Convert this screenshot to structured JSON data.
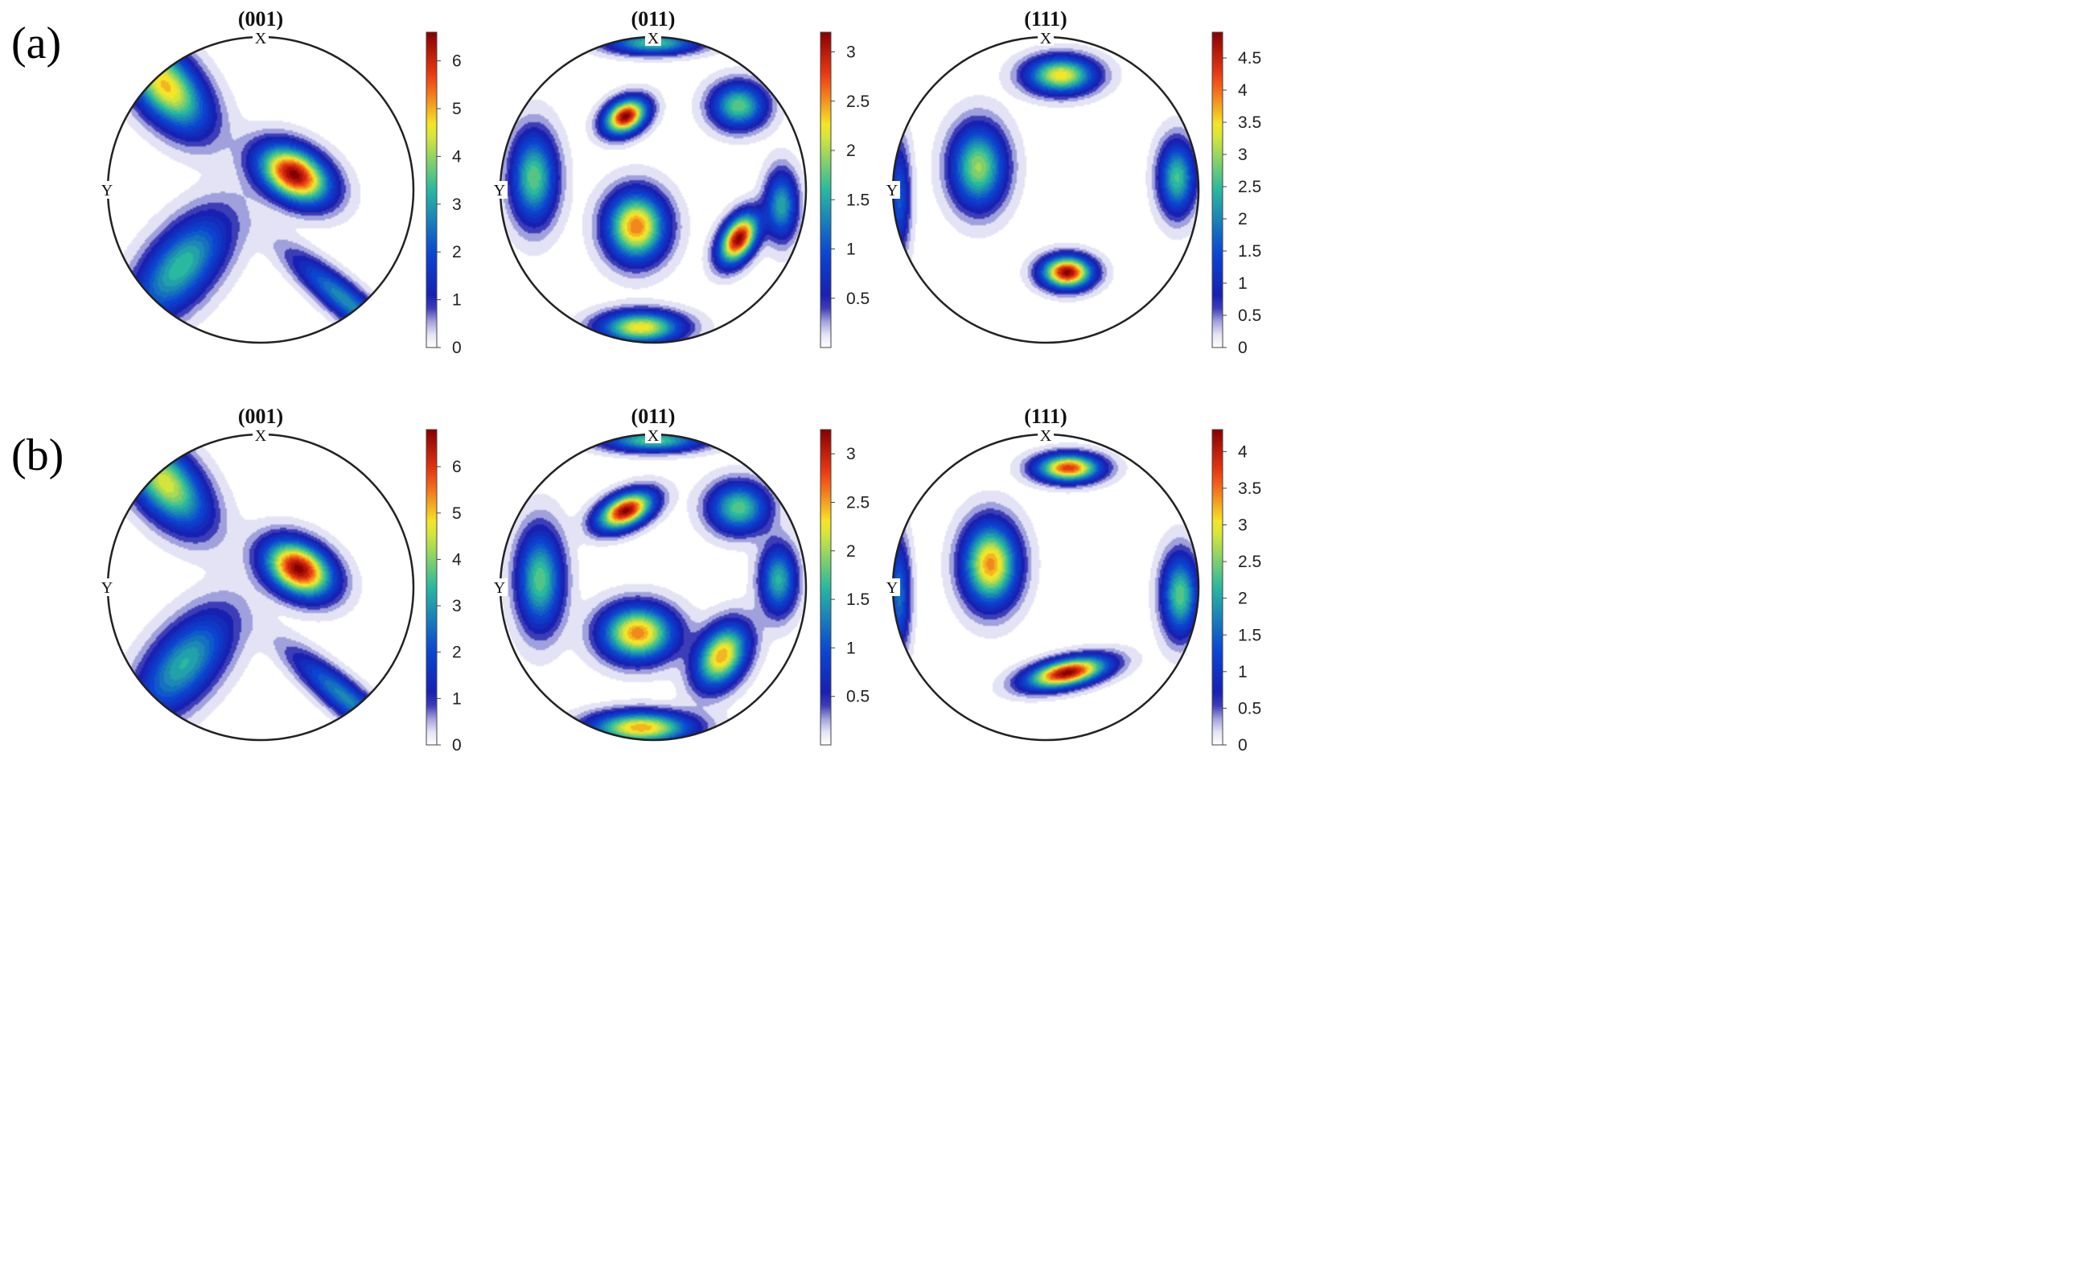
{
  "figure": {
    "rows": [
      {
        "label": "(a)",
        "panels": [
          {
            "title": "(001)",
            "x_axis_label": "X",
            "y_axis_label": "Y"
          },
          {
            "title": "(011)",
            "x_axis_label": "X",
            "y_axis_label": "Y"
          },
          {
            "title": "(111)",
            "x_axis_label": "X",
            "y_axis_label": "Y"
          }
        ]
      },
      {
        "label": "(b)",
        "panels": [
          {
            "title": "(001)",
            "x_axis_label": "X",
            "y_axis_label": "Y"
          },
          {
            "title": "(011)",
            "x_axis_label": "X",
            "y_axis_label": "Y"
          },
          {
            "title": "(111)",
            "x_axis_label": "X",
            "y_axis_label": "Y"
          }
        ]
      }
    ]
  },
  "chart_data": [
    {
      "type": "heatmap",
      "row": "(a)",
      "title": "(001)",
      "xlabel": "X",
      "ylabel": "Y",
      "colorbar": {
        "min": 0,
        "max": 6.6,
        "ticks": [
          0,
          1,
          2,
          3,
          4,
          5,
          6
        ]
      },
      "peaks": [
        {
          "x": 0.22,
          "y": 0.1,
          "value": 6.6,
          "sx": 0.17,
          "sy": 0.11,
          "rot": -30
        },
        {
          "x": -0.62,
          "y": 0.68,
          "value": 4.9,
          "sx": 0.13,
          "sy": 0.24,
          "rot": 40
        },
        {
          "x": -0.52,
          "y": -0.5,
          "value": 3.4,
          "sx": 0.14,
          "sy": 0.28,
          "rot": -40
        },
        {
          "x": 0.55,
          "y": -0.72,
          "value": 2.8,
          "sx": 0.07,
          "sy": 0.3,
          "rot": 50
        }
      ]
    },
    {
      "type": "heatmap",
      "row": "(a)",
      "title": "(011)",
      "xlabel": "X",
      "ylabel": "Y",
      "colorbar": {
        "min": 0,
        "max": 3.2,
        "ticks": [
          0.5,
          1,
          1.5,
          2,
          2.5,
          3
        ]
      },
      "peaks": [
        {
          "x": -0.18,
          "y": 0.48,
          "value": 3.2,
          "sx": 0.1,
          "sy": 0.07,
          "rot": 30
        },
        {
          "x": 0.56,
          "y": -0.32,
          "value": 3.2,
          "sx": 0.07,
          "sy": 0.12,
          "rot": -30
        },
        {
          "x": -0.11,
          "y": -0.24,
          "value": 2.6,
          "sx": 0.13,
          "sy": 0.15,
          "rot": 0
        },
        {
          "x": -0.08,
          "y": -0.9,
          "value": 2.3,
          "sx": 0.18,
          "sy": 0.07,
          "rot": 0
        },
        {
          "x": -0.78,
          "y": 0.08,
          "value": 1.8,
          "sx": 0.1,
          "sy": 0.2,
          "rot": 0
        },
        {
          "x": 0.56,
          "y": 0.55,
          "value": 1.8,
          "sx": 0.12,
          "sy": 0.1,
          "rot": 0
        },
        {
          "x": 0.84,
          "y": -0.1,
          "value": 1.5,
          "sx": 0.07,
          "sy": 0.15,
          "rot": 0
        },
        {
          "x": 0.0,
          "y": 0.96,
          "value": 1.7,
          "sx": 0.2,
          "sy": 0.05,
          "rot": 0
        }
      ]
    },
    {
      "type": "heatmap",
      "row": "(a)",
      "title": "(111)",
      "xlabel": "X",
      "ylabel": "Y",
      "colorbar": {
        "min": 0,
        "max": 4.9,
        "ticks": [
          0,
          0.5,
          1,
          1.5,
          2,
          2.5,
          3,
          3.5,
          4,
          4.5
        ]
      },
      "peaks": [
        {
          "x": 0.14,
          "y": -0.54,
          "value": 4.9,
          "sx": 0.11,
          "sy": 0.07,
          "rot": 0
        },
        {
          "x": 0.1,
          "y": 0.75,
          "value": 3.5,
          "sx": 0.15,
          "sy": 0.08,
          "rot": 0
        },
        {
          "x": -0.44,
          "y": 0.15,
          "value": 3.0,
          "sx": 0.12,
          "sy": 0.18,
          "rot": 0
        },
        {
          "x": 0.86,
          "y": 0.08,
          "value": 2.6,
          "sx": 0.08,
          "sy": 0.16,
          "rot": 0
        },
        {
          "x": -0.96,
          "y": -0.05,
          "value": 1.6,
          "sx": 0.05,
          "sy": 0.25,
          "rot": 0
        }
      ]
    },
    {
      "type": "heatmap",
      "row": "(b)",
      "title": "(001)",
      "xlabel": "X",
      "ylabel": "Y",
      "colorbar": {
        "min": 0,
        "max": 6.8,
        "ticks": [
          0,
          1,
          2,
          3,
          4,
          5,
          6
        ]
      },
      "peaks": [
        {
          "x": 0.25,
          "y": 0.12,
          "value": 6.8,
          "sx": 0.16,
          "sy": 0.11,
          "rot": -30
        },
        {
          "x": -0.62,
          "y": 0.68,
          "value": 4.6,
          "sx": 0.13,
          "sy": 0.24,
          "rot": 40
        },
        {
          "x": -0.5,
          "y": -0.5,
          "value": 3.3,
          "sx": 0.14,
          "sy": 0.28,
          "rot": -40
        },
        {
          "x": 0.55,
          "y": -0.72,
          "value": 2.8,
          "sx": 0.07,
          "sy": 0.3,
          "rot": 50
        }
      ]
    },
    {
      "type": "heatmap",
      "row": "(b)",
      "title": "(011)",
      "xlabel": "X",
      "ylabel": "Y",
      "colorbar": {
        "min": 0,
        "max": 3.25,
        "ticks": [
          0.5,
          1,
          1.5,
          2,
          2.5,
          3
        ]
      },
      "peaks": [
        {
          "x": -0.18,
          "y": 0.5,
          "value": 3.25,
          "sx": 0.13,
          "sy": 0.07,
          "rot": 25
        },
        {
          "x": -0.1,
          "y": -0.3,
          "value": 2.6,
          "sx": 0.16,
          "sy": 0.12,
          "rot": 0
        },
        {
          "x": 0.45,
          "y": -0.45,
          "value": 2.5,
          "sx": 0.1,
          "sy": 0.15,
          "rot": -30
        },
        {
          "x": -0.08,
          "y": -0.92,
          "value": 2.5,
          "sx": 0.22,
          "sy": 0.07,
          "rot": 0
        },
        {
          "x": -0.74,
          "y": 0.05,
          "value": 1.8,
          "sx": 0.1,
          "sy": 0.22,
          "rot": 0
        },
        {
          "x": 0.56,
          "y": 0.52,
          "value": 1.8,
          "sx": 0.13,
          "sy": 0.11,
          "rot": 0
        },
        {
          "x": 0.82,
          "y": 0.05,
          "value": 1.6,
          "sx": 0.08,
          "sy": 0.15,
          "rot": 0
        },
        {
          "x": 0.0,
          "y": 0.96,
          "value": 1.8,
          "sx": 0.22,
          "sy": 0.05,
          "rot": 0
        }
      ]
    },
    {
      "type": "heatmap",
      "row": "(b)",
      "title": "(111)",
      "xlabel": "X",
      "ylabel": "Y",
      "colorbar": {
        "min": 0,
        "max": 4.3,
        "ticks": [
          0,
          0.5,
          1,
          1.5,
          2,
          2.5,
          3,
          3.5,
          4
        ]
      },
      "peaks": [
        {
          "x": 0.14,
          "y": -0.56,
          "value": 4.3,
          "sx": 0.18,
          "sy": 0.06,
          "rot": 12
        },
        {
          "x": 0.15,
          "y": 0.78,
          "value": 3.8,
          "sx": 0.14,
          "sy": 0.06,
          "rot": 0
        },
        {
          "x": -0.36,
          "y": 0.15,
          "value": 3.4,
          "sx": 0.12,
          "sy": 0.18,
          "rot": 0
        },
        {
          "x": 0.88,
          "y": -0.05,
          "value": 2.4,
          "sx": 0.08,
          "sy": 0.18,
          "rot": 0
        },
        {
          "x": -0.96,
          "y": -0.05,
          "value": 1.6,
          "sx": 0.05,
          "sy": 0.25,
          "rot": 0
        }
      ]
    }
  ]
}
